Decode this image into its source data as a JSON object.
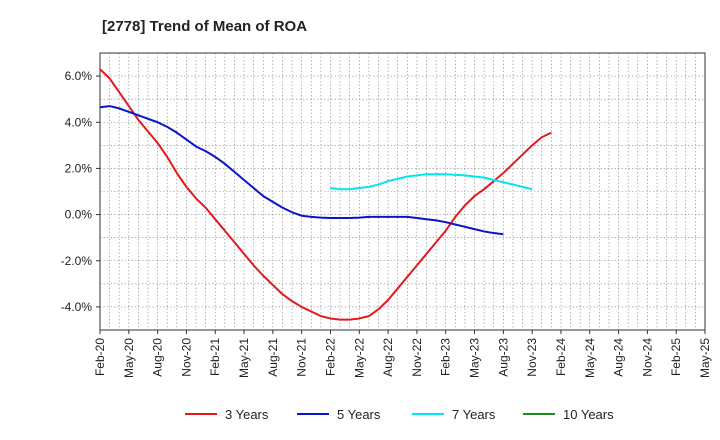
{
  "chart_data": {
    "type": "line",
    "title": "[2778]  Trend of Mean of ROA",
    "xlabel": "",
    "ylabel": "",
    "ylim": [
      -5.0,
      7.0
    ],
    "yticks": [
      6.0,
      4.0,
      2.0,
      0.0,
      -2.0,
      -4.0
    ],
    "ytick_labels": [
      "6.0%",
      "4.0%",
      "2.0%",
      "0.0%",
      "-2.0%",
      "-4.0%"
    ],
    "x_labels": [
      "Feb-20",
      "May-20",
      "Aug-20",
      "Nov-20",
      "Feb-21",
      "May-21",
      "Aug-21",
      "Nov-21",
      "Feb-22",
      "May-22",
      "Aug-22",
      "Nov-22",
      "Feb-23",
      "May-23",
      "Aug-23",
      "Nov-23",
      "Feb-24",
      "May-24",
      "Aug-24",
      "Nov-24",
      "Feb-25",
      "May-25"
    ],
    "grid": true,
    "legend_position": "bottom",
    "series": [
      {
        "name": "3 Years",
        "color": "#e31a1c",
        "values": [
          6.3,
          5.9,
          5.3,
          4.7,
          4.1,
          3.6,
          3.1,
          2.5,
          1.8,
          1.2,
          0.7,
          0.3,
          -0.2,
          -0.7,
          -1.2,
          -1.7,
          -2.2,
          -2.65,
          -3.05,
          -3.45,
          -3.75,
          -4.0,
          -4.2,
          -4.4,
          -4.5,
          -4.55,
          -4.55,
          -4.5,
          -4.4,
          -4.1,
          -3.7,
          -3.2,
          -2.7,
          -2.2,
          -1.7,
          -1.2,
          -0.7,
          -0.1,
          0.4,
          0.8,
          1.1,
          1.45,
          1.8,
          2.2,
          2.6,
          3.0,
          3.35,
          3.55
        ],
        "start_index": 0
      },
      {
        "name": "5 Years",
        "color": "#0a14c8",
        "values": [
          4.65,
          4.7,
          4.6,
          4.45,
          4.3,
          4.15,
          4.0,
          3.8,
          3.55,
          3.25,
          2.95,
          2.75,
          2.5,
          2.2,
          1.85,
          1.5,
          1.15,
          0.8,
          0.55,
          0.3,
          0.1,
          -0.05,
          -0.1,
          -0.13,
          -0.15,
          -0.15,
          -0.15,
          -0.13,
          -0.1,
          -0.1,
          -0.1,
          -0.1,
          -0.1,
          -0.15,
          -0.2,
          -0.25,
          -0.33,
          -0.43,
          -0.53,
          -0.63,
          -0.73,
          -0.8,
          -0.85
        ],
        "start_index": 0
      },
      {
        "name": "7 Years",
        "color": "#00e5ee",
        "values": [
          1.15,
          1.1,
          1.1,
          1.15,
          1.2,
          1.3,
          1.45,
          1.55,
          1.65,
          1.7,
          1.75,
          1.75,
          1.75,
          1.72,
          1.7,
          1.65,
          1.6,
          1.5,
          1.4,
          1.3,
          1.2,
          1.1
        ],
        "start_index": 24
      },
      {
        "name": "10 Years",
        "color": "#1f8a1f",
        "values": [],
        "start_index": 0
      }
    ]
  }
}
